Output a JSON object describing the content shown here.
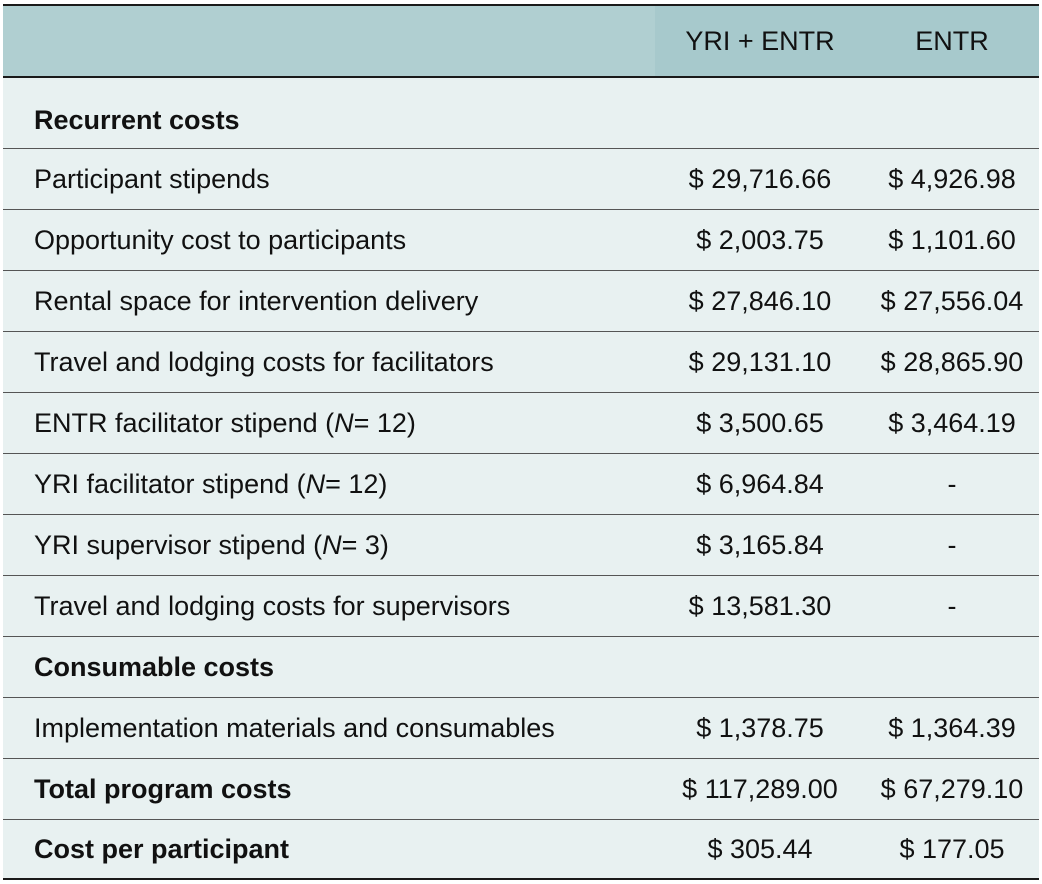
{
  "columns": {
    "c1": "",
    "c2": "YRI + ENTR",
    "c3": "ENTR"
  },
  "rows": [
    {
      "label": "Recurrent costs",
      "v1": "",
      "v2": ""
    },
    {
      "label": "Participant stipends",
      "v1": "$ 29,716.66",
      "v2": "$ 4,926.98"
    },
    {
      "label": "Opportunity cost to participants",
      "v1": "$ 2,003.75",
      "v2": "$ 1,101.60"
    },
    {
      "label": "Rental space for intervention delivery",
      "v1": "$ 27,846.10",
      "v2": "$ 27,556.04"
    },
    {
      "label": "Travel and lodging costs for facilitators",
      "v1": "$ 29,131.10",
      "v2": "$ 28,865.90"
    },
    {
      "label_pre": "ENTR facilitator stipend (",
      "label_n": "N",
      "label_post": " = 12)",
      "v1": "$ 3,500.65",
      "v2": "$ 3,464.19"
    },
    {
      "label_pre": "YRI facilitator stipend (",
      "label_n": "N",
      "label_post": " = 12)",
      "v1": "$ 6,964.84",
      "v2": "-"
    },
    {
      "label_pre": "YRI supervisor stipend (",
      "label_n": "N",
      "label_post": " = 3)",
      "v1": "$ 3,165.84",
      "v2": "-"
    },
    {
      "label": "Travel and lodging costs for supervisors",
      "v1": "$ 13,581.30",
      "v2": "-"
    },
    {
      "label": "Consumable costs",
      "v1": "",
      "v2": ""
    },
    {
      "label": "Implementation materials and consumables",
      "v1": "$ 1,378.75",
      "v2": "$ 1,364.39"
    },
    {
      "label": "Total program costs",
      "v1": "$ 117,289.00",
      "v2": "$ 67,279.10"
    },
    {
      "label": "Cost per participant",
      "v1": "$ 305.44",
      "v2": "$ 177.05"
    }
  ]
}
